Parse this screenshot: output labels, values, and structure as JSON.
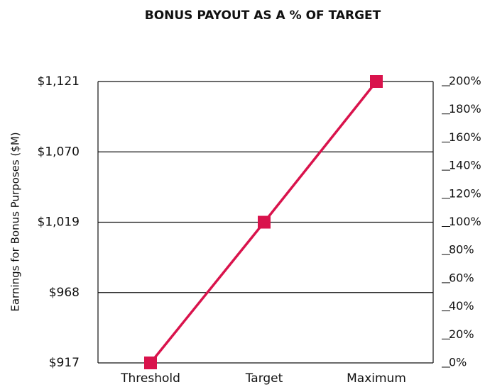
{
  "chart_data": {
    "type": "line",
    "title": "BONUS PAYOUT AS A % OF TARGET",
    "y_label": "Earnings for Bonus Purposes ($M)",
    "categories": [
      "Threshold",
      "Target",
      "Maximum"
    ],
    "values": [
      917,
      1019,
      1121
    ],
    "color": "#d9134c",
    "ylim": [
      917,
      1121
    ],
    "yticks": [
      {
        "value": 917,
        "label": "$917"
      },
      {
        "value": 968,
        "label": "$968"
      },
      {
        "value": 1019,
        "label": "$1,019"
      },
      {
        "value": 1070,
        "label": "$1,070"
      },
      {
        "value": 1121,
        "label": "$1,121"
      }
    ],
    "y2lim": [
      0,
      200
    ],
    "y2ticks": [
      {
        "value": 0,
        "label": "0%"
      },
      {
        "value": 20,
        "label": "20%"
      },
      {
        "value": 40,
        "label": "40%"
      },
      {
        "value": 60,
        "label": "60%"
      },
      {
        "value": 80,
        "label": "80%"
      },
      {
        "value": 100,
        "label": "100%"
      },
      {
        "value": 120,
        "label": "120%"
      },
      {
        "value": 140,
        "label": "140%"
      },
      {
        "value": 160,
        "label": "160%"
      },
      {
        "value": 180,
        "label": "180%"
      },
      {
        "value": 200,
        "label": "200%"
      }
    ],
    "grid": true
  }
}
